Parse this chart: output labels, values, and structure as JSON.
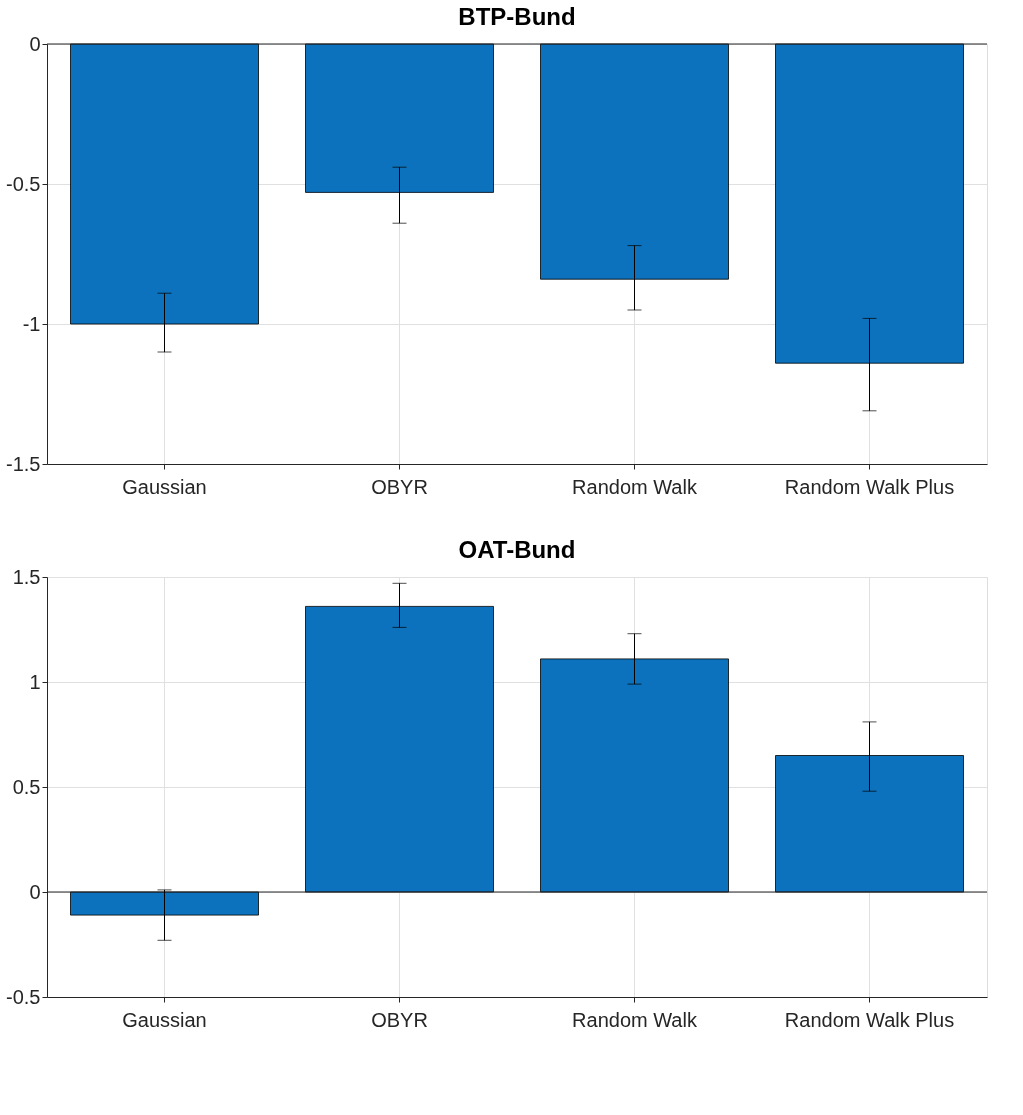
{
  "chart_data": [
    {
      "type": "bar",
      "title": "BTP-Bund",
      "categories": [
        "Gaussian",
        "OBYR",
        "Random Walk",
        "Random Walk Plus"
      ],
      "values": [
        -1.0,
        -0.53,
        -0.84,
        -1.14
      ],
      "color": "#0c72bd",
      "errors": [
        [
          -1.1,
          -0.89
        ],
        [
          -0.64,
          -0.44
        ],
        [
          -0.95,
          -0.72
        ],
        [
          -1.31,
          -0.98
        ]
      ],
      "ylim": [
        -1.5,
        0
      ],
      "yticks": [
        -1.5,
        -1,
        -0.5,
        0
      ],
      "grid": true,
      "ref_lines": [
        {
          "axis": "y",
          "value": 0
        }
      ]
    },
    {
      "type": "bar",
      "title": "OAT-Bund",
      "categories": [
        "Gaussian",
        "OBYR",
        "Random Walk",
        "Random Walk Plus"
      ],
      "values": [
        -0.11,
        1.36,
        1.11,
        0.65
      ],
      "color": "#0c72bd",
      "errors": [
        [
          -0.23,
          0.01
        ],
        [
          1.26,
          1.47
        ],
        [
          0.99,
          1.23
        ],
        [
          0.48,
          0.81
        ]
      ],
      "ylim": [
        -0.5,
        1.5
      ],
      "yticks": [
        -0.5,
        0,
        0.5,
        1,
        1.5
      ],
      "grid": true,
      "ref_lines": [
        {
          "axis": "y",
          "value": 0
        }
      ]
    }
  ]
}
